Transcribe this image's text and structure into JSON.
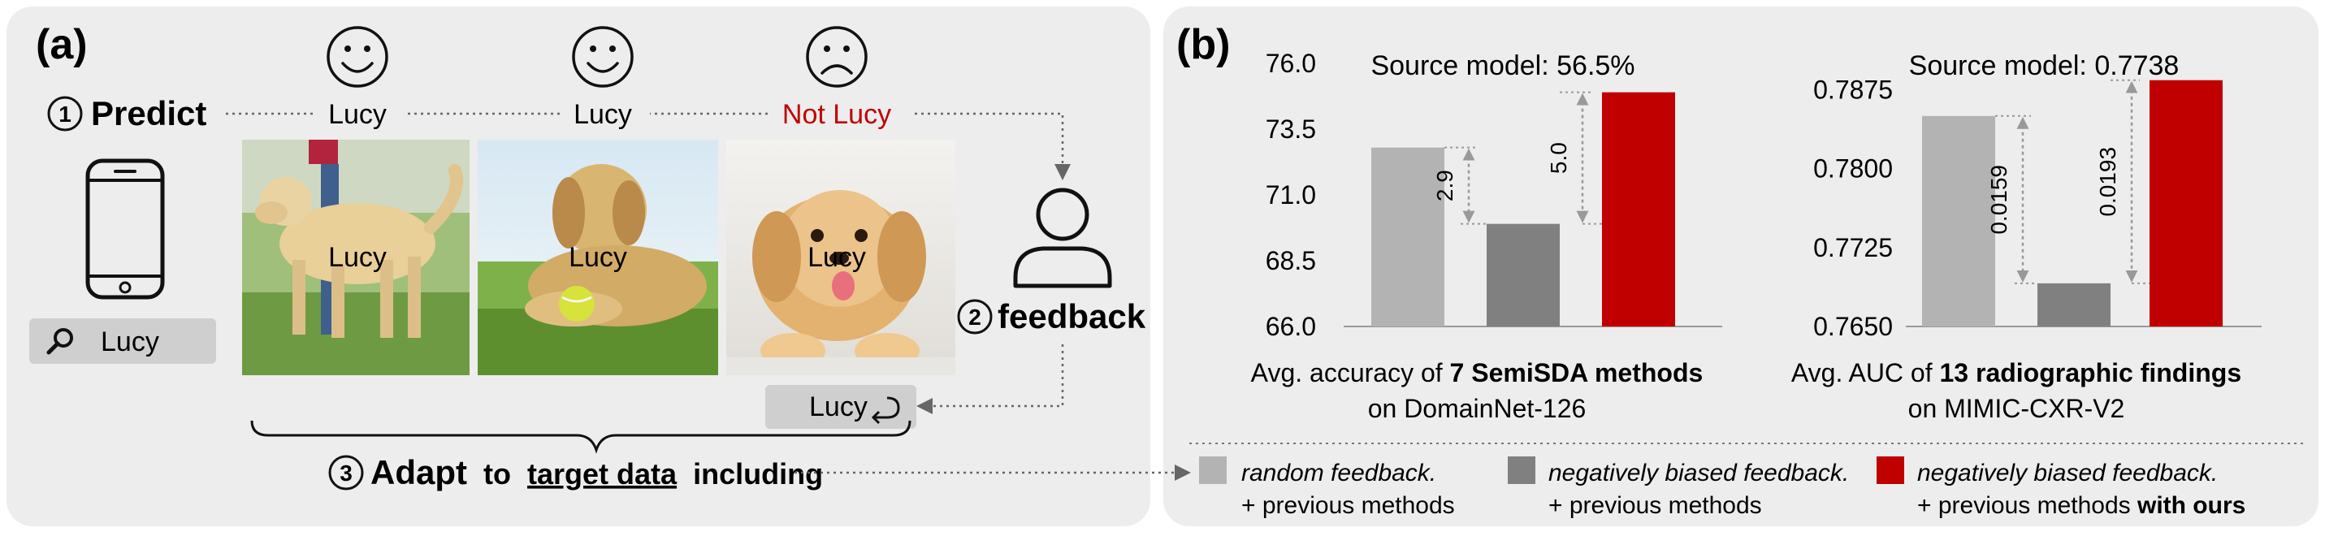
{
  "panel_a": {
    "label": "(a)",
    "step1": {
      "num": "1",
      "label": "Predict"
    },
    "predictions": [
      {
        "label": "Lucy",
        "mood": "happy"
      },
      {
        "label": "Lucy",
        "mood": "happy"
      },
      {
        "label": "Not Lucy",
        "mood": "sad"
      }
    ],
    "photo_labels": [
      "Lucy",
      "Lucy",
      "Lucy"
    ],
    "search": {
      "value": "Lucy",
      "icon": "magnifier-icon"
    },
    "step2": {
      "num": "2",
      "label": "feedback"
    },
    "feedback_tag": {
      "value": "Lucy",
      "icon": "return-icon"
    },
    "step3": {
      "num": "3",
      "label_bold": "Adapt",
      "label_to": "to",
      "label_target": "target data",
      "label_including": "including"
    }
  },
  "panel_b": {
    "label": "(b)",
    "colors": {
      "random": "#b3b3b3",
      "biased": "#808080",
      "ours": "#c00000"
    }
  },
  "chart_data": [
    {
      "type": "bar",
      "title": "Source model: 56.5%",
      "categories": [
        "random feedback + previous methods",
        "negatively biased feedback + previous methods",
        "negatively biased feedback + previous methods with ours"
      ],
      "values": [
        72.8,
        69.9,
        74.9
      ],
      "ylim": [
        66.0,
        76.0
      ],
      "yticks": [
        "76.0",
        "73.5",
        "71.0",
        "68.5",
        "66.0"
      ],
      "annotations": [
        "2.9",
        "5.0"
      ],
      "caption_pre": "Avg. accuracy of ",
      "caption_bold": "7 SemiSDA methods",
      "caption_line2": "on DomainNet-126"
    },
    {
      "type": "bar",
      "title": "Source model: 0.7738",
      "categories": [
        "random feedback + previous methods",
        "negatively biased feedback + previous methods",
        "negatively biased feedback + previous methods with ours"
      ],
      "values": [
        0.785,
        0.7691,
        0.7884
      ],
      "ylim": [
        0.765,
        0.79
      ],
      "yticks": [
        "0.7875",
        "0.7800",
        "0.7725",
        "0.7650"
      ],
      "annotations": [
        "0.0159",
        "0.0193"
      ],
      "caption_pre": "Avg. AUC of ",
      "caption_bold": "13 radiographic findings",
      "caption_line2": "on MIMIC-CXR-V2"
    }
  ],
  "legend": [
    {
      "line1": "random feedback.",
      "line2": "+ previous methods",
      "line2_bold": ""
    },
    {
      "line1": "negatively biased feedback.",
      "line2": "+ previous methods",
      "line2_bold": ""
    },
    {
      "line1": "negatively biased feedback.",
      "line2": "+ previous methods ",
      "line2_bold": "with ours"
    }
  ]
}
